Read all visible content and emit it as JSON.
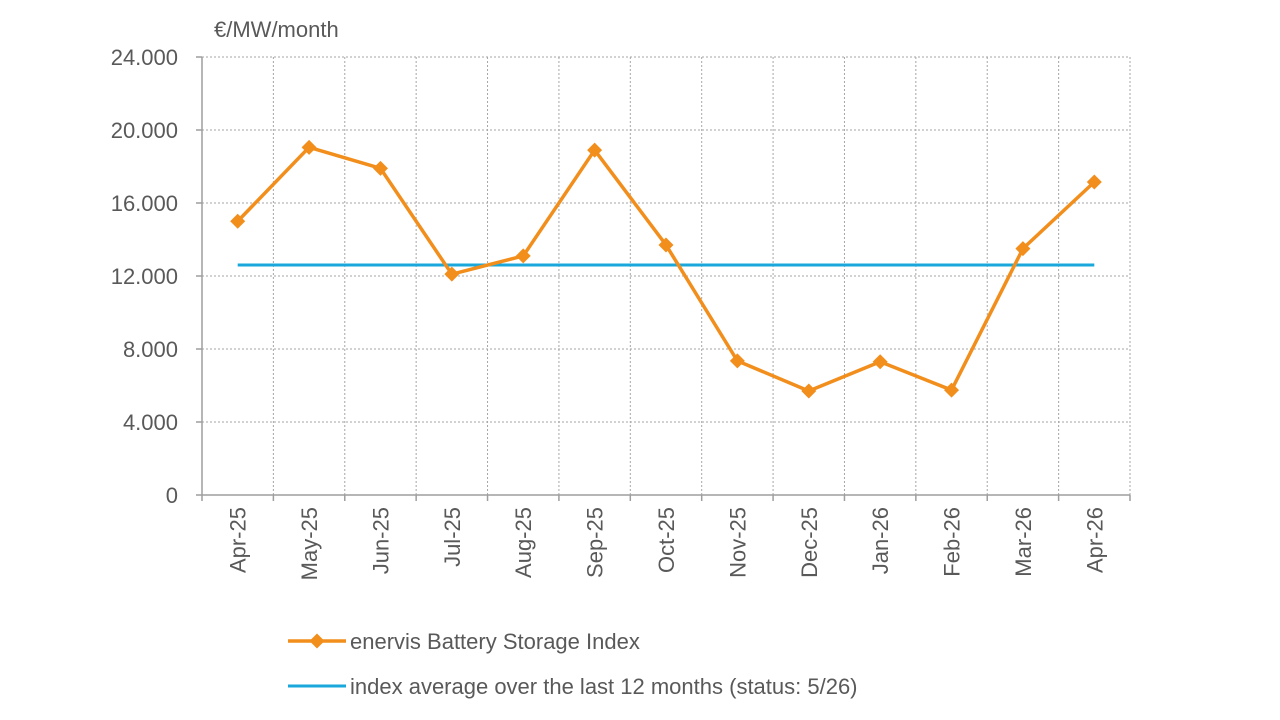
{
  "chart_data": {
    "type": "line",
    "unit_label": "€/MW/month",
    "categories": [
      "Apr-25",
      "May-25",
      "Jun-25",
      "Jul-25",
      "Aug-25",
      "Sep-25",
      "Oct-25",
      "Nov-25",
      "Dec-25",
      "Jan-26",
      "Feb-26",
      "Mar-26",
      "Apr-26"
    ],
    "y_ticks": [
      "0",
      "4.000",
      "8.000",
      "12.000",
      "16.000",
      "20.000",
      "24.000"
    ],
    "ylim": [
      0,
      24000
    ],
    "grid": true,
    "legend_position": "bottom",
    "series": [
      {
        "name": "enervis Battery Storage Index",
        "color": "#F28E1C",
        "marker": "diamond",
        "values": [
          15000,
          19050,
          17900,
          12100,
          13100,
          18900,
          13700,
          7350,
          5700,
          7300,
          5750,
          13500,
          17150
        ]
      },
      {
        "name": "index average over the last 12 months (status: 5/26)",
        "color": "#1AA7DC",
        "marker": "none",
        "values": [
          12600,
          12600,
          12600,
          12600,
          12600,
          12600,
          12600,
          12600,
          12600,
          12600,
          12600,
          12600,
          12600
        ]
      }
    ]
  }
}
